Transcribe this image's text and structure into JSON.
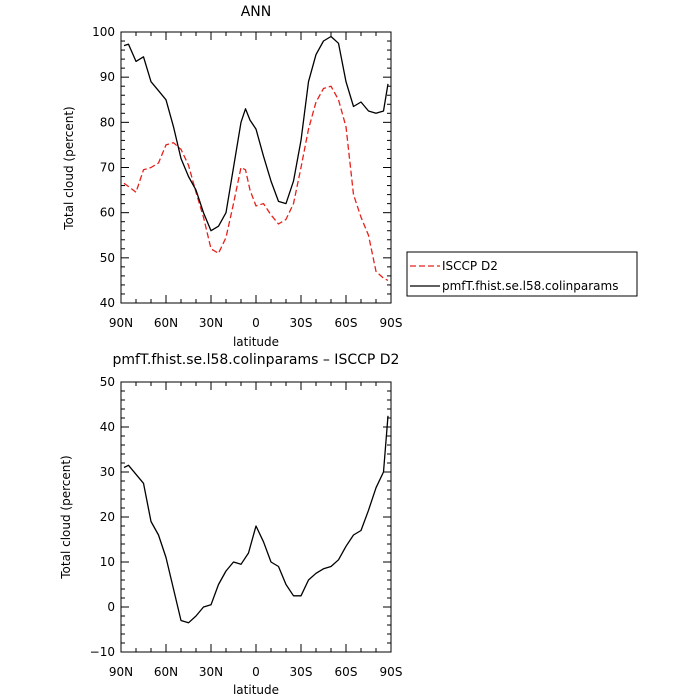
{
  "chart_data": [
    {
      "type": "line",
      "title": "ANN",
      "xlabel": "latitude",
      "ylabel": "Total cloud (percent)",
      "xlim": [
        90,
        -90
      ],
      "ylim": [
        40,
        100
      ],
      "x_ticks": [
        90,
        60,
        30,
        0,
        -30,
        -60,
        -90
      ],
      "x_tick_labels": [
        "90N",
        "60N",
        "30N",
        "0",
        "30S",
        "60S",
        "90S"
      ],
      "y_ticks": [
        40,
        50,
        60,
        70,
        80,
        90,
        100
      ],
      "y_tick_labels": [
        "40",
        "50",
        "60",
        "70",
        "80",
        "90",
        "100"
      ],
      "legend_position": "outside-right",
      "series": [
        {
          "name": "ISCCP D2",
          "color": "#e8201a",
          "dash": "dashed",
          "x": [
            88,
            85,
            80,
            75,
            70,
            65,
            60,
            55,
            50,
            45,
            40,
            35,
            30,
            25,
            20,
            15,
            10,
            7,
            4,
            0,
            -5,
            -10,
            -15,
            -20,
            -25,
            -30,
            -35,
            -40,
            -45,
            -50,
            -55,
            -60,
            -65,
            -70,
            -75,
            -80,
            -85,
            -88
          ],
          "y": [
            66.5,
            65.8,
            64.5,
            69.5,
            70,
            71,
            75,
            75.5,
            74,
            70.5,
            64.5,
            59,
            52,
            51,
            54.5,
            62,
            70,
            69.5,
            65,
            61.5,
            62,
            59.5,
            57.5,
            58.5,
            62,
            70,
            78.5,
            84.5,
            87.5,
            88,
            85,
            79,
            64,
            59,
            55,
            47,
            45.5,
            45
          ]
        },
        {
          "name": "pmfT.fhist.se.l58.colinparams",
          "color": "#000000",
          "dash": "solid",
          "x": [
            88,
            85,
            80,
            75,
            70,
            65,
            60,
            55,
            50,
            45,
            40,
            35,
            30,
            25,
            20,
            15,
            10,
            7,
            4,
            0,
            -5,
            -10,
            -15,
            -20,
            -25,
            -30,
            -35,
            -40,
            -45,
            -50,
            -55,
            -60,
            -65,
            -70,
            -75,
            -80,
            -85,
            -88
          ],
          "y": [
            97,
            97.3,
            93.5,
            94.5,
            89,
            87,
            85,
            79,
            72,
            68,
            65,
            60,
            56,
            57,
            60,
            70,
            80,
            83,
            80.5,
            78.5,
            72.5,
            67,
            62.5,
            62,
            67,
            76,
            89,
            95,
            98,
            99,
            97.5,
            89,
            83.5,
            84.5,
            82.5,
            82,
            82.5,
            88.5
          ]
        }
      ]
    },
    {
      "type": "line",
      "title": "pmfT.fhist.se.l58.colinparams – ISCCP D2",
      "xlabel": "latitude",
      "ylabel": "Total cloud (percent)",
      "xlim": [
        90,
        -90
      ],
      "ylim": [
        -10,
        50
      ],
      "x_ticks": [
        90,
        60,
        30,
        0,
        -30,
        -60,
        -90
      ],
      "x_tick_labels": [
        "90N",
        "60N",
        "30N",
        "0",
        "30S",
        "60S",
        "90S"
      ],
      "y_ticks": [
        -10,
        0,
        10,
        20,
        30,
        40,
        50
      ],
      "y_tick_labels": [
        "−10",
        "0",
        "10",
        "20",
        "30",
        "40",
        "50"
      ],
      "series": [
        {
          "color": "#000000",
          "dash": "solid",
          "x": [
            88,
            85,
            80,
            75,
            70,
            65,
            60,
            55,
            50,
            45,
            40,
            35,
            30,
            25,
            20,
            15,
            10,
            5,
            0,
            -5,
            -10,
            -15,
            -20,
            -25,
            -30,
            -35,
            -40,
            -45,
            -50,
            -55,
            -60,
            -65,
            -70,
            -75,
            -80,
            -85,
            -88
          ],
          "y": [
            31,
            31.5,
            29.5,
            27.5,
            19,
            16,
            11,
            4,
            -3,
            -3.5,
            -2,
            0,
            0.5,
            5,
            8,
            10,
            9.5,
            12,
            18,
            14.5,
            10,
            9,
            5,
            2.5,
            2.5,
            6,
            7.5,
            8.5,
            9,
            10.5,
            13.5,
            16,
            17,
            21.5,
            26.5,
            30,
            42.5
          ]
        }
      ]
    }
  ]
}
